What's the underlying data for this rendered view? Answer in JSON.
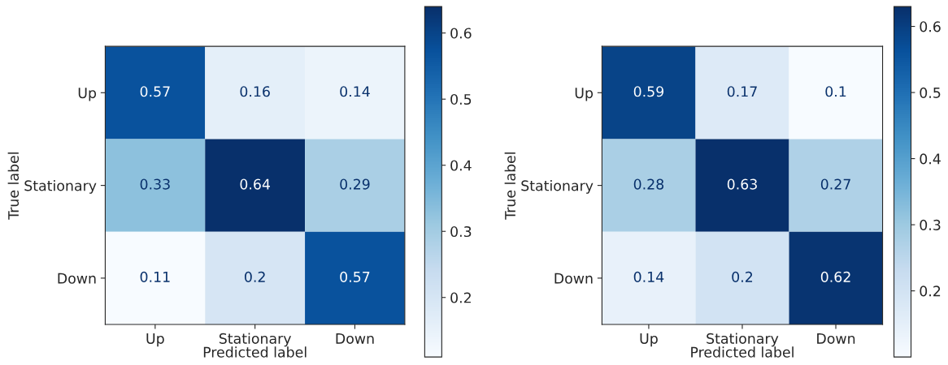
{
  "chart_data": [
    {
      "type": "heatmap",
      "xlabel": "Predicted label",
      "ylabel": "True label",
      "categories": [
        "Up",
        "Stationary",
        "Down"
      ],
      "y_categories": [
        "Up",
        "Stationary",
        "Down"
      ],
      "cells": [
        [
          0.57,
          0.16,
          0.14
        ],
        [
          0.33,
          0.64,
          0.29
        ],
        [
          0.11,
          0.2,
          0.57
        ]
      ],
      "clim": [
        0.11,
        0.64
      ],
      "cticks": [
        0.2,
        0.3,
        0.4,
        0.5,
        0.6
      ],
      "data_labels": true
    },
    {
      "type": "heatmap",
      "xlabel": "Predicted label",
      "ylabel": "True label",
      "categories": [
        "Up",
        "Stationary",
        "Down"
      ],
      "y_categories": [
        "Up",
        "Stationary",
        "Down"
      ],
      "cells": [
        [
          0.59,
          0.17,
          0.1
        ],
        [
          0.28,
          0.63,
          0.27
        ],
        [
          0.14,
          0.2,
          0.62
        ]
      ],
      "clim": [
        0.1,
        0.63
      ],
      "cticks": [
        0.2,
        0.3,
        0.4,
        0.5,
        0.6
      ],
      "data_labels": true
    }
  ]
}
